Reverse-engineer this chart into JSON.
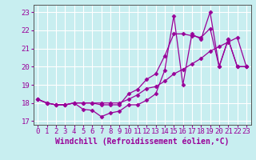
{
  "xlabel": "Windchill (Refroidissement éolien,°C)",
  "background_color": "#c8eef0",
  "line_color": "#990099",
  "grid_color": "#ffffff",
  "xlim": [
    -0.5,
    23.5
  ],
  "ylim": [
    16.8,
    23.4
  ],
  "xticks": [
    0,
    1,
    2,
    3,
    4,
    5,
    6,
    7,
    8,
    9,
    10,
    11,
    12,
    13,
    14,
    15,
    16,
    17,
    18,
    19,
    20,
    21,
    22,
    23
  ],
  "yticks": [
    17,
    18,
    19,
    20,
    21,
    22,
    23
  ],
  "line1_x": [
    0,
    1,
    2,
    3,
    4,
    5,
    6,
    7,
    8,
    9,
    10,
    11,
    12,
    13,
    14,
    15,
    16,
    17,
    18,
    19,
    20,
    21,
    22,
    23
  ],
  "line1_y": [
    18.2,
    18.0,
    17.9,
    17.9,
    18.0,
    17.65,
    17.6,
    17.25,
    17.45,
    17.55,
    17.9,
    17.9,
    18.15,
    18.5,
    19.8,
    22.8,
    19.0,
    21.8,
    21.5,
    23.0,
    20.0,
    21.5,
    20.0,
    20.0
  ],
  "line2_x": [
    0,
    1,
    2,
    3,
    4,
    5,
    6,
    7,
    8,
    9,
    10,
    11,
    12,
    13,
    14,
    15,
    16,
    17,
    18,
    19,
    20,
    21,
    22,
    23
  ],
  "line2_y": [
    18.2,
    18.0,
    17.9,
    17.9,
    18.0,
    18.0,
    18.0,
    17.9,
    17.9,
    17.9,
    18.5,
    18.75,
    19.3,
    19.6,
    20.6,
    21.8,
    21.8,
    21.7,
    21.6,
    22.1,
    20.0,
    21.5,
    20.0,
    20.0
  ],
  "line3_x": [
    0,
    1,
    2,
    3,
    4,
    5,
    6,
    7,
    8,
    9,
    10,
    11,
    12,
    13,
    14,
    15,
    16,
    17,
    18,
    19,
    20,
    21,
    22,
    23
  ],
  "line3_y": [
    18.2,
    18.0,
    17.9,
    17.9,
    18.0,
    18.0,
    18.0,
    18.0,
    18.0,
    18.0,
    18.2,
    18.45,
    18.8,
    18.9,
    19.2,
    19.6,
    19.85,
    20.15,
    20.45,
    20.85,
    21.1,
    21.35,
    21.6,
    20.0
  ],
  "marker": "D",
  "markersize": 2.5,
  "linewidth": 0.9,
  "xlabel_fontsize": 7,
  "tick_fontsize": 6.5
}
